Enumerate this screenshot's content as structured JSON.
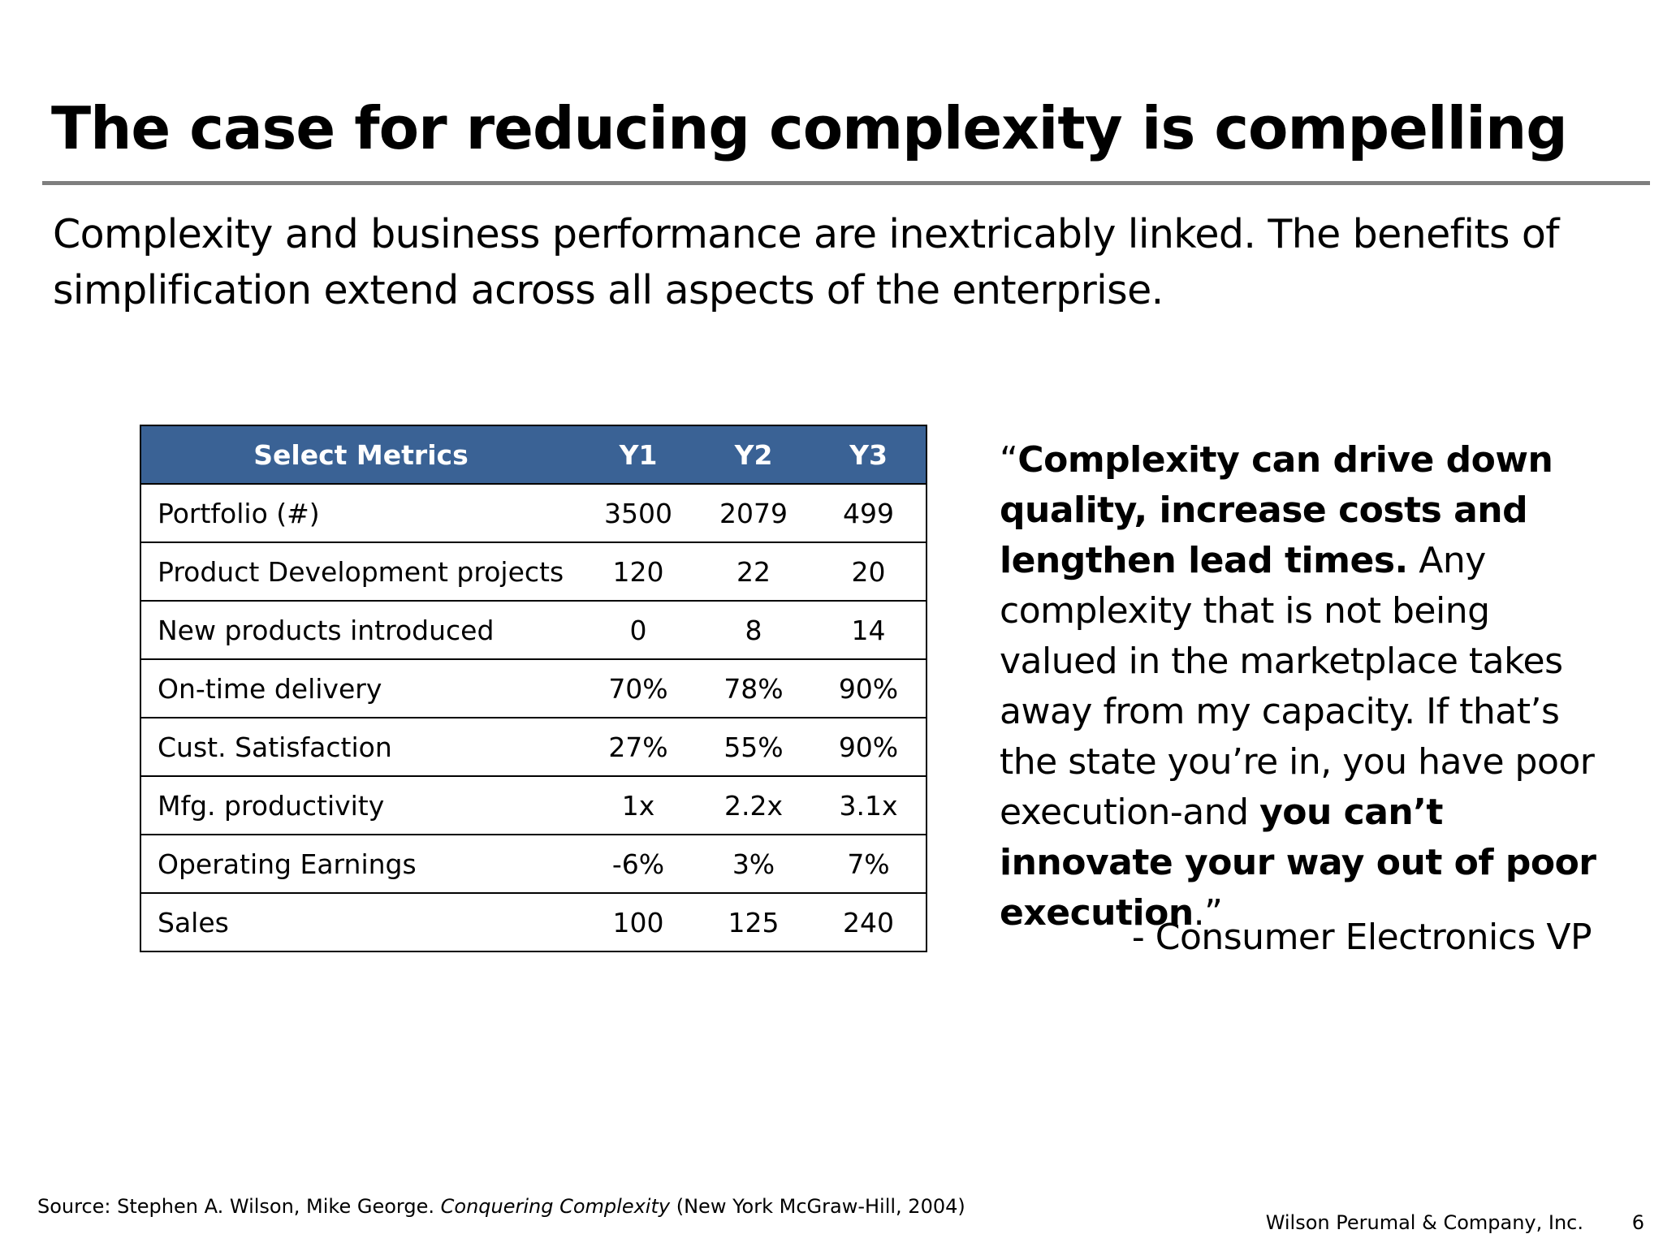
{
  "slide": {
    "title": "The case for reducing complexity is compelling",
    "subtitle": "Complexity and business performance are inextricably linked.   The benefits of simplification extend across all aspects of the enterprise."
  },
  "table": {
    "headers": [
      "Select Metrics",
      "Y1",
      "Y2",
      "Y3"
    ],
    "header_color": "#3a6295",
    "rows": [
      [
        "Portfolio (#)",
        "3500",
        "2079",
        "499"
      ],
      [
        "Product Development projects",
        "120",
        "22",
        "20"
      ],
      [
        "New products introduced",
        "0",
        "8",
        "14"
      ],
      [
        "On-time delivery",
        "70%",
        "78%",
        "90%"
      ],
      [
        "Cust. Satisfaction",
        "27%",
        "55%",
        "90%"
      ],
      [
        "Mfg. productivity",
        "1x",
        "2.2x",
        "3.1x"
      ],
      [
        "Operating Earnings",
        "-6%",
        "3%",
        "7%"
      ],
      [
        "Sales",
        "100",
        "125",
        "240"
      ]
    ]
  },
  "quote": {
    "open_mark": "“",
    "bold_1": "Complexity can drive down quality, increase costs and lengthen lead times.",
    "text_1": " Any complexity that is not being valued in the marketplace takes away from my capacity.    If that’s the state you’re in, you have poor execution-and ",
    "bold_2": "you can’t innovate your way out of poor execution",
    "close": ".”",
    "attribution": "- Consumer Electronics VP"
  },
  "footer": {
    "source_prefix": "Source:  Stephen A. Wilson, Mike George.",
    "source_book": "Conquering Complexity",
    "source_suffix": "(New York McGraw-Hill, 2004)",
    "company": "Wilson Perumal & Company, Inc.",
    "page_number": "6"
  }
}
